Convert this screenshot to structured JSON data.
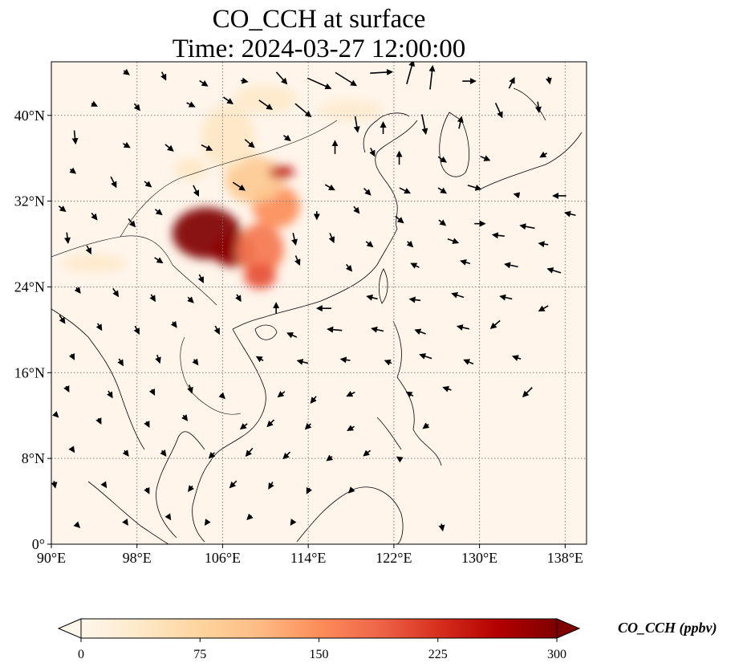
{
  "title": {
    "line1": "CO_CCH at surface",
    "line2": "Time: 2024-03-27 12:00:00"
  },
  "map": {
    "lon_range": [
      90,
      140
    ],
    "lat_range": [
      0,
      45
    ],
    "lon_ticks": [
      {
        "value": 90,
        "label": "90°E"
      },
      {
        "value": 98,
        "label": "98°E"
      },
      {
        "value": 106,
        "label": "106°E"
      },
      {
        "value": 114,
        "label": "114°E"
      },
      {
        "value": 122,
        "label": "122°E"
      },
      {
        "value": 130,
        "label": "130°E"
      },
      {
        "value": 138,
        "label": "138°E"
      }
    ],
    "lat_ticks": [
      {
        "value": 0,
        "label": "0°"
      },
      {
        "value": 8,
        "label": "8°N"
      },
      {
        "value": 16,
        "label": "16°N"
      },
      {
        "value": 24,
        "label": "24°N"
      },
      {
        "value": 32,
        "label": "32°N"
      },
      {
        "value": 40,
        "label": "40°N"
      }
    ],
    "gridlines": true,
    "background_color": "#fff5eb",
    "coastline_color": "#000000",
    "plumes": [
      {
        "lon": 104.5,
        "lat": 29.0,
        "rlon": 3.2,
        "rlat": 2.4,
        "value": 300
      },
      {
        "lon": 107.0,
        "lat": 27.3,
        "rlon": 2.0,
        "rlat": 1.4,
        "value": 290
      },
      {
        "lon": 109.5,
        "lat": 27.5,
        "rlon": 2.2,
        "rlat": 2.4,
        "value": 170
      },
      {
        "lon": 111.0,
        "lat": 31.5,
        "rlon": 2.2,
        "rlat": 2.0,
        "value": 150
      },
      {
        "lon": 109.0,
        "lat": 34.0,
        "rlon": 2.8,
        "rlat": 2.2,
        "value": 90
      },
      {
        "lon": 111.5,
        "lat": 34.7,
        "rlon": 1.2,
        "rlat": 0.6,
        "value": 250
      },
      {
        "lon": 109.5,
        "lat": 25.0,
        "rlon": 1.5,
        "rlat": 1.2,
        "value": 200
      },
      {
        "lon": 106.5,
        "lat": 38.0,
        "rlon": 2.5,
        "rlat": 3.0,
        "value": 40
      },
      {
        "lon": 110.0,
        "lat": 41.5,
        "rlon": 3.0,
        "rlat": 1.3,
        "value": 35
      },
      {
        "lon": 118.0,
        "lat": 40.5,
        "rlon": 3.0,
        "rlat": 1.0,
        "value": 30
      },
      {
        "lon": 94.0,
        "lat": 26.2,
        "rlon": 3.0,
        "rlat": 0.8,
        "value": 35
      },
      {
        "lon": 103.0,
        "lat": 35.0,
        "rlon": 1.5,
        "rlat": 1.0,
        "value": 40
      }
    ],
    "wind_arrows": [
      {
        "lon": 97.0,
        "lat": 44.0,
        "u": 0.4,
        "v": -0.3
      },
      {
        "lon": 100.5,
        "lat": 43.7,
        "u": 0.3,
        "v": -0.6
      },
      {
        "lon": 104.2,
        "lat": 43.0,
        "u": 0.6,
        "v": -0.4
      },
      {
        "lon": 108.0,
        "lat": 43.2,
        "u": 0.5,
        "v": -0.1
      },
      {
        "lon": 111.5,
        "lat": 43.5,
        "u": 0.8,
        "v": -0.9
      },
      {
        "lon": 115.0,
        "lat": 43.0,
        "u": 1.8,
        "v": -0.8
      },
      {
        "lon": 117.5,
        "lat": 43.4,
        "u": 1.6,
        "v": -1.0
      },
      {
        "lon": 120.8,
        "lat": 44.0,
        "u": 1.7,
        "v": 0.1
      },
      {
        "lon": 123.5,
        "lat": 44.0,
        "u": 0.5,
        "v": 1.8
      },
      {
        "lon": 125.5,
        "lat": 43.5,
        "u": 0.2,
        "v": 1.8
      },
      {
        "lon": 129.0,
        "lat": 43.2,
        "u": 1.0,
        "v": 0.0
      },
      {
        "lon": 133.0,
        "lat": 43.0,
        "u": 0.4,
        "v": 0.8
      },
      {
        "lon": 136.5,
        "lat": 43.3,
        "u": 0.1,
        "v": -0.5
      },
      {
        "lon": 94.0,
        "lat": 41.0,
        "u": 0.4,
        "v": -0.2
      },
      {
        "lon": 98.0,
        "lat": 40.8,
        "u": 0.4,
        "v": -0.5
      },
      {
        "lon": 103.0,
        "lat": 41.0,
        "u": 0.6,
        "v": -0.3
      },
      {
        "lon": 106.5,
        "lat": 41.4,
        "u": 0.7,
        "v": -0.5
      },
      {
        "lon": 110.0,
        "lat": 41.0,
        "u": 1.0,
        "v": -0.7
      },
      {
        "lon": 113.5,
        "lat": 40.5,
        "u": 1.2,
        "v": -1.0
      },
      {
        "lon": 118.5,
        "lat": 39.2,
        "u": 0.2,
        "v": -1.2
      },
      {
        "lon": 121.0,
        "lat": 38.8,
        "u": 0.0,
        "v": 0.9
      },
      {
        "lon": 124.8,
        "lat": 39.2,
        "u": 0.3,
        "v": -1.5
      },
      {
        "lon": 128.2,
        "lat": 39.3,
        "u": 0.2,
        "v": 0.9
      },
      {
        "lon": 131.8,
        "lat": 40.5,
        "u": 0.5,
        "v": -1.1
      },
      {
        "lon": 135.5,
        "lat": 40.8,
        "u": 0.1,
        "v": -0.8
      },
      {
        "lon": 92.2,
        "lat": 38.0,
        "u": 0.1,
        "v": -1.0
      },
      {
        "lon": 97.0,
        "lat": 37.2,
        "u": 0.5,
        "v": -0.3
      },
      {
        "lon": 101.0,
        "lat": 37.0,
        "u": 0.6,
        "v": -0.5
      },
      {
        "lon": 104.5,
        "lat": 37.0,
        "u": 0.8,
        "v": -0.4
      },
      {
        "lon": 108.5,
        "lat": 37.4,
        "u": 0.7,
        "v": -0.6
      },
      {
        "lon": 112.0,
        "lat": 37.9,
        "u": 0.5,
        "v": -0.4
      },
      {
        "lon": 116.5,
        "lat": 37.0,
        "u": 0.0,
        "v": 1.0
      },
      {
        "lon": 120.0,
        "lat": 36.6,
        "u": 0.3,
        "v": -0.6
      },
      {
        "lon": 122.5,
        "lat": 36.0,
        "u": 0.0,
        "v": 1.0
      },
      {
        "lon": 126.5,
        "lat": 35.9,
        "u": 0.6,
        "v": -0.4
      },
      {
        "lon": 130.5,
        "lat": 36.0,
        "u": 0.7,
        "v": -0.3
      },
      {
        "lon": 136.0,
        "lat": 36.3,
        "u": -0.5,
        "v": -0.3
      },
      {
        "lon": 92.0,
        "lat": 34.8,
        "u": 0.4,
        "v": -0.3
      },
      {
        "lon": 95.8,
        "lat": 33.8,
        "u": 0.4,
        "v": -0.8
      },
      {
        "lon": 99.0,
        "lat": 33.6,
        "u": 0.5,
        "v": -0.4
      },
      {
        "lon": 103.5,
        "lat": 33.0,
        "u": 0.4,
        "v": -0.8
      },
      {
        "lon": 107.5,
        "lat": 33.4,
        "u": 0.9,
        "v": -0.6
      },
      {
        "lon": 116.0,
        "lat": 33.3,
        "u": 0.7,
        "v": -0.4
      },
      {
        "lon": 119.5,
        "lat": 32.9,
        "u": 0.5,
        "v": -0.5
      },
      {
        "lon": 123.0,
        "lat": 33.0,
        "u": 0.8,
        "v": -0.4
      },
      {
        "lon": 126.5,
        "lat": 33.0,
        "u": 0.6,
        "v": -0.4
      },
      {
        "lon": 129.5,
        "lat": 33.3,
        "u": 1.0,
        "v": -0.3
      },
      {
        "lon": 133.5,
        "lat": 32.6,
        "u": -0.4,
        "v": 0.1
      },
      {
        "lon": 137.5,
        "lat": 32.5,
        "u": -1.0,
        "v": 0.0
      },
      {
        "lon": 91.0,
        "lat": 31.3,
        "u": 0.5,
        "v": -0.4
      },
      {
        "lon": 94.0,
        "lat": 30.6,
        "u": 0.4,
        "v": -0.5
      },
      {
        "lon": 97.5,
        "lat": 30.0,
        "u": 0.5,
        "v": -0.6
      },
      {
        "lon": 100.0,
        "lat": 31.0,
        "u": 0.5,
        "v": -0.4
      },
      {
        "lon": 114.8,
        "lat": 30.7,
        "u": 0.0,
        "v": -0.6
      },
      {
        "lon": 118.5,
        "lat": 31.2,
        "u": 0.4,
        "v": -0.5
      },
      {
        "lon": 122.5,
        "lat": 30.3,
        "u": 0.6,
        "v": -0.5
      },
      {
        "lon": 126.5,
        "lat": 30.0,
        "u": 0.5,
        "v": -0.4
      },
      {
        "lon": 130.0,
        "lat": 29.9,
        "u": 0.8,
        "v": 0.0
      },
      {
        "lon": 134.5,
        "lat": 29.6,
        "u": -1.1,
        "v": 0.2
      },
      {
        "lon": 138.5,
        "lat": 30.8,
        "u": -0.8,
        "v": 0.2
      },
      {
        "lon": 91.5,
        "lat": 28.6,
        "u": 0.1,
        "v": -0.8
      },
      {
        "lon": 93.5,
        "lat": 27.5,
        "u": 0.3,
        "v": -0.6
      },
      {
        "lon": 112.7,
        "lat": 28.5,
        "u": 0.2,
        "v": -0.9
      },
      {
        "lon": 116.2,
        "lat": 28.6,
        "u": 0.3,
        "v": -0.7
      },
      {
        "lon": 119.7,
        "lat": 28.0,
        "u": 0.5,
        "v": -0.4
      },
      {
        "lon": 123.5,
        "lat": 28.0,
        "u": 0.4,
        "v": -0.4
      },
      {
        "lon": 127.5,
        "lat": 28.3,
        "u": 0.8,
        "v": -0.3
      },
      {
        "lon": 131.8,
        "lat": 28.8,
        "u": -0.9,
        "v": 0.1
      },
      {
        "lon": 136.0,
        "lat": 28.0,
        "u": -0.7,
        "v": 0.1
      },
      {
        "lon": 100.0,
        "lat": 26.5,
        "u": 0.6,
        "v": -0.4
      },
      {
        "lon": 104.0,
        "lat": 24.8,
        "u": 0.3,
        "v": -0.6
      },
      {
        "lon": 113.0,
        "lat": 26.5,
        "u": 0.3,
        "v": -0.7
      },
      {
        "lon": 117.8,
        "lat": 25.8,
        "u": 0.4,
        "v": -0.5
      },
      {
        "lon": 124.0,
        "lat": 26.0,
        "u": -0.6,
        "v": 0.3
      },
      {
        "lon": 128.7,
        "lat": 26.3,
        "u": -0.7,
        "v": 0.2
      },
      {
        "lon": 133.0,
        "lat": 26.0,
        "u": -1.0,
        "v": 0.2
      },
      {
        "lon": 137.0,
        "lat": 25.5,
        "u": -1.0,
        "v": 0.3
      },
      {
        "lon": 92.5,
        "lat": 23.7,
        "u": 0.3,
        "v": -0.4
      },
      {
        "lon": 96.0,
        "lat": 23.5,
        "u": 0.4,
        "v": -0.6
      },
      {
        "lon": 99.5,
        "lat": 23.0,
        "u": 0.3,
        "v": -0.5
      },
      {
        "lon": 103.0,
        "lat": 22.8,
        "u": 0.4,
        "v": -0.4
      },
      {
        "lon": 107.5,
        "lat": 23.0,
        "u": 0.3,
        "v": -0.5
      },
      {
        "lon": 111.0,
        "lat": 22.0,
        "u": 0.0,
        "v": 0.8
      },
      {
        "lon": 115.5,
        "lat": 22.0,
        "u": -1.1,
        "v": 0.0
      },
      {
        "lon": 120.0,
        "lat": 23.0,
        "u": -0.8,
        "v": 0.2
      },
      {
        "lon": 124.0,
        "lat": 22.8,
        "u": -0.8,
        "v": 0.1
      },
      {
        "lon": 128.0,
        "lat": 23.2,
        "u": -0.9,
        "v": 0.3
      },
      {
        "lon": 132.5,
        "lat": 23.0,
        "u": -0.9,
        "v": 0.2
      },
      {
        "lon": 136.0,
        "lat": 22.0,
        "u": -0.7,
        "v": -0.4
      },
      {
        "lon": 91.0,
        "lat": 21.0,
        "u": 0.4,
        "v": -0.6
      },
      {
        "lon": 94.5,
        "lat": 20.3,
        "u": 0.3,
        "v": -0.5
      },
      {
        "lon": 98.0,
        "lat": 20.0,
        "u": 0.3,
        "v": -0.6
      },
      {
        "lon": 101.5,
        "lat": 20.5,
        "u": 0.3,
        "v": -0.4
      },
      {
        "lon": 105.5,
        "lat": 20.0,
        "u": 0.3,
        "v": -0.6
      },
      {
        "lon": 112.5,
        "lat": 19.5,
        "u": -0.7,
        "v": 0.3
      },
      {
        "lon": 116.5,
        "lat": 20.0,
        "u": -1.1,
        "v": 0.1
      },
      {
        "lon": 120.5,
        "lat": 20.0,
        "u": -0.9,
        "v": 0.2
      },
      {
        "lon": 124.5,
        "lat": 19.8,
        "u": -0.8,
        "v": 0.3
      },
      {
        "lon": 128.5,
        "lat": 20.2,
        "u": -0.9,
        "v": 0.2
      },
      {
        "lon": 131.5,
        "lat": 20.5,
        "u": -0.7,
        "v": -0.6
      },
      {
        "lon": 92.0,
        "lat": 17.5,
        "u": 0.2,
        "v": -0.4
      },
      {
        "lon": 96.5,
        "lat": 17.0,
        "u": 0.3,
        "v": -0.5
      },
      {
        "lon": 100.0,
        "lat": 17.3,
        "u": 0.2,
        "v": -0.6
      },
      {
        "lon": 103.5,
        "lat": 17.0,
        "u": 0.3,
        "v": -0.4
      },
      {
        "lon": 109.5,
        "lat": 17.3,
        "u": -0.5,
        "v": 0.3
      },
      {
        "lon": 113.5,
        "lat": 17.0,
        "u": -0.8,
        "v": 0.2
      },
      {
        "lon": 117.5,
        "lat": 17.2,
        "u": -0.7,
        "v": 0.1
      },
      {
        "lon": 121.5,
        "lat": 17.0,
        "u": -0.5,
        "v": 0.2
      },
      {
        "lon": 125.0,
        "lat": 17.5,
        "u": -0.9,
        "v": 0.3
      },
      {
        "lon": 129.0,
        "lat": 17.0,
        "u": -0.7,
        "v": 0.3
      },
      {
        "lon": 133.5,
        "lat": 17.4,
        "u": -0.6,
        "v": 0.2
      },
      {
        "lon": 91.5,
        "lat": 14.5,
        "u": 0.2,
        "v": -0.4
      },
      {
        "lon": 95.5,
        "lat": 14.0,
        "u": 0.3,
        "v": -0.5
      },
      {
        "lon": 99.5,
        "lat": 14.2,
        "u": 0.2,
        "v": -0.4
      },
      {
        "lon": 103.0,
        "lat": 14.5,
        "u": 0.2,
        "v": -0.6
      },
      {
        "lon": 106.0,
        "lat": 13.8,
        "u": 0.3,
        "v": -0.3
      },
      {
        "lon": 111.5,
        "lat": 14.0,
        "u": -0.5,
        "v": -0.4
      },
      {
        "lon": 114.5,
        "lat": 13.5,
        "u": -0.4,
        "v": -0.5
      },
      {
        "lon": 118.0,
        "lat": 14.0,
        "u": -0.6,
        "v": -0.3
      },
      {
        "lon": 123.5,
        "lat": 14.0,
        "u": -0.5,
        "v": 0.3
      },
      {
        "lon": 127.0,
        "lat": 14.5,
        "u": -0.6,
        "v": 0.2
      },
      {
        "lon": 134.5,
        "lat": 14.2,
        "u": -0.7,
        "v": -0.7
      },
      {
        "lon": 90.5,
        "lat": 12.0,
        "u": 0.2,
        "v": -0.2
      },
      {
        "lon": 94.5,
        "lat": 11.5,
        "u": 0.2,
        "v": -0.4
      },
      {
        "lon": 99.0,
        "lat": 11.2,
        "u": 0.2,
        "v": -0.4
      },
      {
        "lon": 102.5,
        "lat": 11.8,
        "u": 0.3,
        "v": -0.4
      },
      {
        "lon": 108.0,
        "lat": 11.0,
        "u": -0.5,
        "v": -0.4
      },
      {
        "lon": 110.5,
        "lat": 11.3,
        "u": -0.5,
        "v": -0.5
      },
      {
        "lon": 114.0,
        "lat": 11.0,
        "u": -0.4,
        "v": -0.4
      },
      {
        "lon": 118.0,
        "lat": 10.8,
        "u": -0.5,
        "v": -0.3
      },
      {
        "lon": 125.0,
        "lat": 11.0,
        "u": -0.4,
        "v": -0.3
      },
      {
        "lon": 92.0,
        "lat": 8.8,
        "u": 0.2,
        "v": -0.3
      },
      {
        "lon": 97.0,
        "lat": 8.5,
        "u": 0.3,
        "v": -0.4
      },
      {
        "lon": 100.5,
        "lat": 8.5,
        "u": 0.3,
        "v": -0.4
      },
      {
        "lon": 105.0,
        "lat": 8.3,
        "u": -0.4,
        "v": -0.4
      },
      {
        "lon": 108.5,
        "lat": 8.6,
        "u": -0.5,
        "v": -0.6
      },
      {
        "lon": 112.0,
        "lat": 8.3,
        "u": -0.5,
        "v": -0.5
      },
      {
        "lon": 116.0,
        "lat": 8.0,
        "u": -0.4,
        "v": -0.3
      },
      {
        "lon": 119.5,
        "lat": 8.5,
        "u": -0.5,
        "v": -0.4
      },
      {
        "lon": 122.5,
        "lat": 8.0,
        "u": -0.3,
        "v": 0.2
      },
      {
        "lon": 90.3,
        "lat": 5.6,
        "u": 0.1,
        "v": -0.5
      },
      {
        "lon": 95.0,
        "lat": 5.5,
        "u": 0.2,
        "v": -0.3
      },
      {
        "lon": 99.0,
        "lat": 5.0,
        "u": 0.2,
        "v": -0.4
      },
      {
        "lon": 103.0,
        "lat": 5.2,
        "u": -0.3,
        "v": -0.4
      },
      {
        "lon": 107.0,
        "lat": 5.6,
        "u": -0.5,
        "v": -0.5
      },
      {
        "lon": 110.5,
        "lat": 5.5,
        "u": -0.3,
        "v": -0.5
      },
      {
        "lon": 114.0,
        "lat": 5.0,
        "u": -0.2,
        "v": -0.4
      },
      {
        "lon": 118.0,
        "lat": 5.0,
        "u": -0.3,
        "v": -0.3
      },
      {
        "lon": 92.5,
        "lat": 1.7,
        "u": 0.2,
        "v": -0.2
      },
      {
        "lon": 97.0,
        "lat": 2.0,
        "u": 0.2,
        "v": -0.3
      },
      {
        "lon": 101.0,
        "lat": 2.5,
        "u": 0.2,
        "v": -0.3
      },
      {
        "lon": 104.5,
        "lat": 2.0,
        "u": -0.2,
        "v": -0.3
      },
      {
        "lon": 108.5,
        "lat": 2.5,
        "u": -0.3,
        "v": -0.3
      },
      {
        "lon": 112.5,
        "lat": 2.0,
        "u": -0.2,
        "v": -0.3
      },
      {
        "lon": 126.5,
        "lat": 1.6,
        "u": 0.1,
        "v": -0.5
      }
    ]
  },
  "colorbar": {
    "label": "CO_CCH (ppbv)",
    "min": 0,
    "max": 300,
    "extend": "both",
    "colormap": "OrRd",
    "stops": [
      "#fff7ec",
      "#fee8c8",
      "#fdd49e",
      "#fdbb84",
      "#fc8d59",
      "#ef6548",
      "#d7301f",
      "#b30000",
      "#7f0000"
    ],
    "ticks": [
      {
        "value": 0,
        "label": "0"
      },
      {
        "value": 75,
        "label": "75"
      },
      {
        "value": 150,
        "label": "150"
      },
      {
        "value": 225,
        "label": "225"
      },
      {
        "value": 300,
        "label": "300"
      }
    ]
  }
}
